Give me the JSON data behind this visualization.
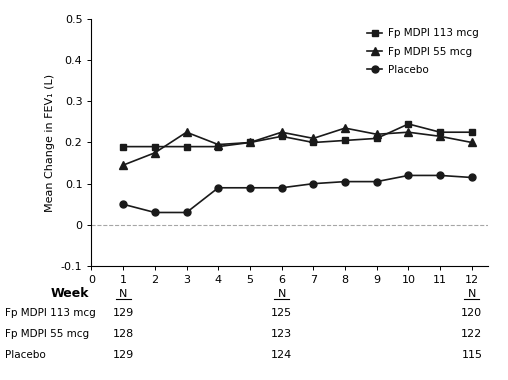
{
  "weeks": [
    1,
    2,
    3,
    4,
    5,
    6,
    7,
    8,
    9,
    10,
    11,
    12
  ],
  "fp113": [
    0.19,
    0.19,
    0.19,
    0.19,
    0.2,
    0.215,
    0.2,
    0.205,
    0.21,
    0.245,
    0.225,
    0.225
  ],
  "fp55": [
    0.145,
    0.175,
    0.225,
    0.195,
    0.2,
    0.225,
    0.21,
    0.235,
    0.22,
    0.225,
    0.215,
    0.2
  ],
  "placebo": [
    0.05,
    0.03,
    0.03,
    0.09,
    0.09,
    0.09,
    0.1,
    0.105,
    0.105,
    0.12,
    0.12,
    0.115
  ],
  "line_color": "#1a1a1a",
  "ylabel": "Mean Change in FEV₁ (L)",
  "xlim": [
    0,
    12.5
  ],
  "ylim": [
    -0.1,
    0.5
  ],
  "yticks": [
    -0.1,
    0,
    0.1,
    0.2,
    0.3,
    0.4,
    0.5
  ],
  "xticks": [
    0,
    1,
    2,
    3,
    4,
    5,
    6,
    7,
    8,
    9,
    10,
    11,
    12
  ],
  "legend_fp113": "Fp MDPI 113 mcg",
  "legend_fp55": "Fp MDPI 55 mcg",
  "legend_placebo": "Placebo",
  "table_labels": [
    "Fp MDPI 113 mcg",
    "Fp MDPI 55 mcg",
    "Placebo"
  ],
  "table_col_weeks": [
    1,
    6,
    12
  ],
  "table_data": [
    [
      129,
      125,
      120
    ],
    [
      128,
      123,
      122
    ],
    [
      129,
      124,
      115
    ]
  ],
  "background_color": "#ffffff"
}
